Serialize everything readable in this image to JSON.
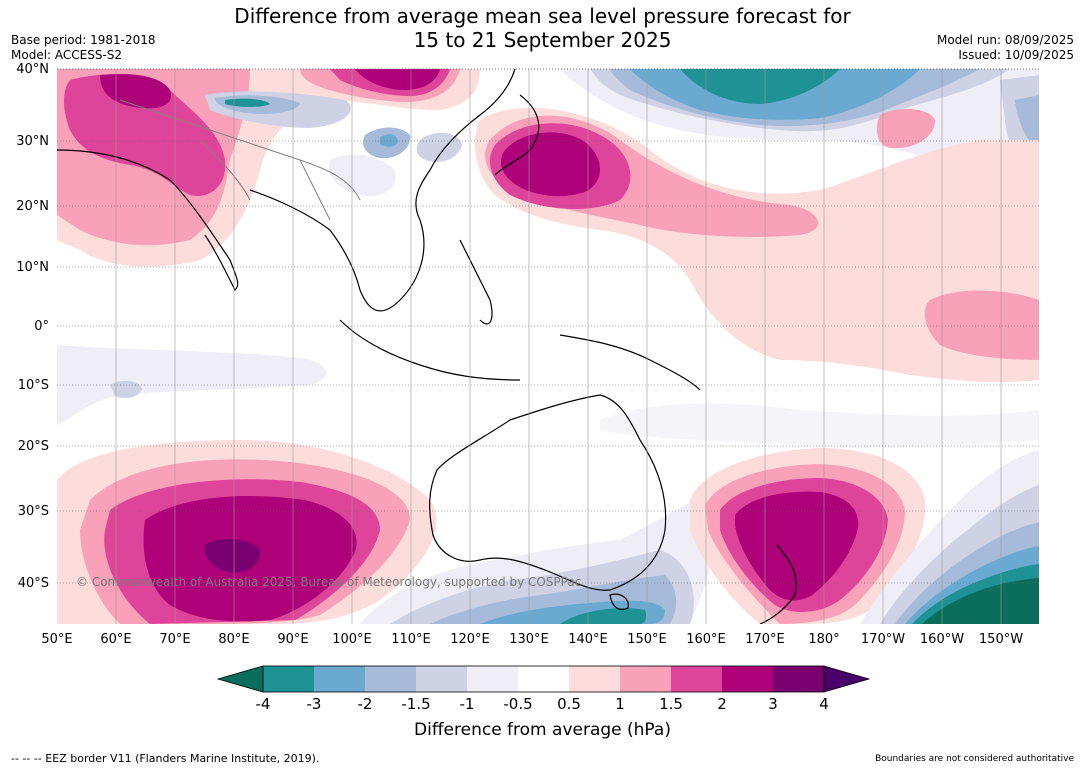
{
  "title": {
    "line1": "Difference from average mean sea level pressure forecast for",
    "line2": "15 to 21 September 2025"
  },
  "meta": {
    "base_period": "Base period: 1981-2018",
    "model": "Model: ACCESS-S2",
    "model_run": "Model run: 08/09/2025",
    "issued": "Issued: 10/09/2025"
  },
  "axes": {
    "lat_labels": [
      "40°N",
      "30°N",
      "20°N",
      "10°N",
      "0°",
      "10°S",
      "20°S",
      "30°S",
      "40°S"
    ],
    "lon_labels": [
      "50°E",
      "60°E",
      "70°E",
      "80°E",
      "90°E",
      "100°E",
      "110°E",
      "120°E",
      "130°E",
      "140°E",
      "150°E",
      "160°E",
      "170°E",
      "180°",
      "170°W",
      "160°W",
      "150°W"
    ]
  },
  "copyright": "© Commonwealth of Australia 2025, Bureau of Meteorology, supported by COSPPac",
  "colorbar": {
    "ticks": [
      "-4",
      "-3",
      "-2",
      "-1.5",
      "-1",
      "-0.5",
      "0.5",
      "1",
      "1.5",
      "2",
      "3",
      "4"
    ],
    "colors": [
      "#0b6e5c",
      "#1e9295",
      "#6aaad0",
      "#a6bbd9",
      "#cfd1e5",
      "#efedf5",
      "#ffffff",
      "#fddcdc",
      "#f9a1b8",
      "#df449b",
      "#ae0078",
      "#7a0070",
      "#4a006a"
    ],
    "label": "Difference from average (hPa)"
  },
  "footer": {
    "eez": "--  --  -- EEZ border V11 (Flanders Marine Institute, 2019).",
    "disclaimer": "Boundaries are not considered authoritative"
  }
}
